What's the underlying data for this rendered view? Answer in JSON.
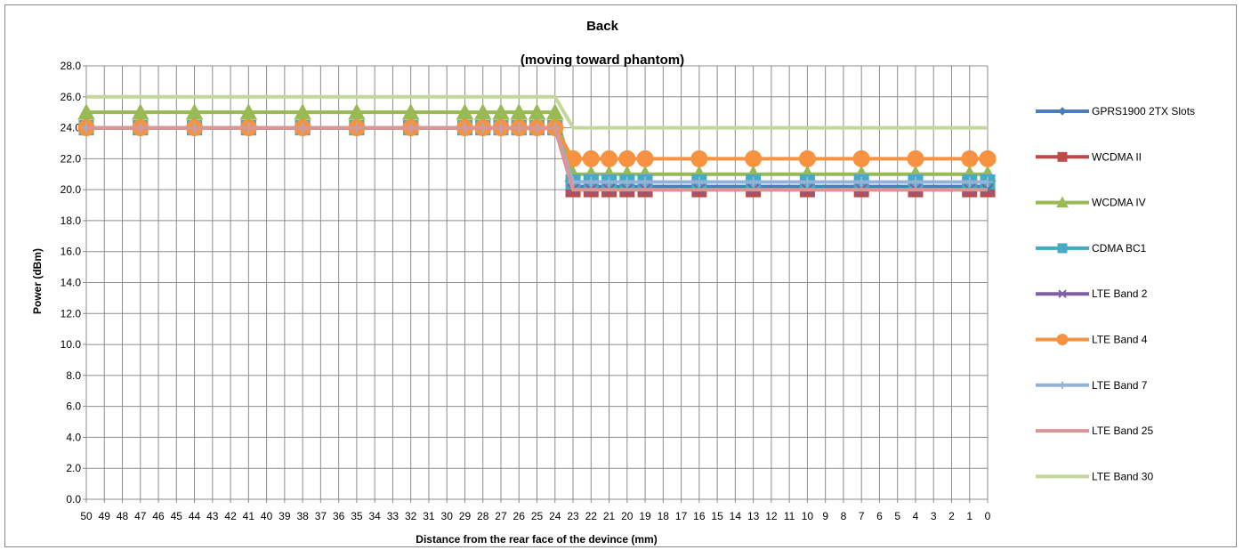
{
  "chart_data": {
    "type": "line",
    "title": "Back",
    "subtitle": "(moving toward phantom)",
    "xlabel": "Distance from the rear face of the devince (mm)",
    "ylabel": "Power (dBm)",
    "ylim": [
      0,
      28
    ],
    "ytick_step": 2,
    "ytick_labels": [
      "0.0",
      "2.0",
      "4.0",
      "6.0",
      "8.0",
      "10.0",
      "12.0",
      "14.0",
      "16.0",
      "18.0",
      "20.0",
      "22.0",
      "24.0",
      "26.0",
      "28.0"
    ],
    "grid": true,
    "legend_position": "right",
    "x_categories": [
      "50",
      "49",
      "48",
      "47",
      "46",
      "45",
      "44",
      "43",
      "42",
      "41",
      "40",
      "39",
      "38",
      "37",
      "36",
      "35",
      "34",
      "33",
      "32",
      "31",
      "30",
      "29",
      "28",
      "27",
      "26",
      "25",
      "24",
      "23",
      "22",
      "21",
      "20",
      "19",
      "18",
      "17",
      "16",
      "15",
      "14",
      "13",
      "12",
      "11",
      "10",
      "9",
      "8",
      "7",
      "6",
      "5",
      "4",
      "3",
      "2",
      "1",
      "0"
    ],
    "marker_x": [
      "50",
      "47",
      "44",
      "41",
      "38",
      "35",
      "32",
      "29",
      "28",
      "27",
      "26",
      "25",
      "24",
      "23",
      "22",
      "21",
      "20",
      "19",
      "16",
      "13",
      "10",
      "7",
      "4",
      "1",
      "0"
    ],
    "series": [
      {
        "name": "GPRS1900 2TX Slots",
        "color": "#4a7ebb",
        "marker": "diamond",
        "values": [
          24,
          24,
          24,
          24,
          24,
          24,
          24,
          24,
          24,
          24,
          24,
          24,
          24,
          20.2,
          20.2,
          20.2,
          20.2,
          20.2,
          20.2,
          20.2,
          20.2,
          20.2,
          20.2,
          20.2,
          20.2
        ]
      },
      {
        "name": "WCDMA II",
        "color": "#be4b48",
        "marker": "square",
        "values": [
          24,
          24,
          24,
          24,
          24,
          24,
          24,
          24,
          24,
          24,
          24,
          24,
          24,
          20,
          20,
          20,
          20,
          20,
          20,
          20,
          20,
          20,
          20,
          20,
          20
        ]
      },
      {
        "name": "WCDMA IV",
        "color": "#98b954",
        "marker": "triangle",
        "values": [
          25,
          25,
          25,
          25,
          25,
          25,
          25,
          25,
          25,
          25,
          25,
          25,
          25,
          21,
          21,
          21,
          21,
          21,
          21,
          21,
          21,
          21,
          21,
          21,
          21
        ]
      },
      {
        "name": "CDMA BC1",
        "color": "#46aac5",
        "marker": "square",
        "values": [
          24,
          24,
          24,
          24,
          24,
          24,
          24,
          24,
          24,
          24,
          24,
          24,
          24,
          20.5,
          20.5,
          20.5,
          20.5,
          20.5,
          20.5,
          20.5,
          20.5,
          20.5,
          20.5,
          20.5,
          20.5
        ]
      },
      {
        "name": "LTE Band 2",
        "color": "#7d60a0",
        "marker": "x",
        "values": [
          24,
          24,
          24,
          24,
          24,
          24,
          24,
          24,
          24,
          24,
          24,
          24,
          24,
          20,
          20,
          20,
          20,
          20,
          20,
          20,
          20,
          20,
          20,
          20,
          20
        ]
      },
      {
        "name": "LTE Band 4",
        "color": "#f69240",
        "marker": "circle",
        "values": [
          24,
          24,
          24,
          24,
          24,
          24,
          24,
          24,
          24,
          24,
          24,
          24,
          24,
          22,
          22,
          22,
          22,
          22,
          22,
          22,
          22,
          22,
          22,
          22,
          22
        ]
      },
      {
        "name": "LTE Band 7",
        "color": "#95b3d7",
        "marker": "plus",
        "values": [
          24,
          24,
          24,
          24,
          24,
          24,
          24,
          24,
          24,
          24,
          24,
          24,
          24,
          20.5,
          20.5,
          20.5,
          20.5,
          20.5,
          20.5,
          20.5,
          20.5,
          20.5,
          20.5,
          20.5,
          20.5
        ]
      },
      {
        "name": "LTE Band 25",
        "color": "#d99694",
        "marker": "none",
        "values": [
          24,
          24,
          24,
          24,
          24,
          24,
          24,
          24,
          24,
          24,
          24,
          24,
          24,
          20,
          20,
          20,
          20,
          20,
          20,
          20,
          20,
          20,
          20,
          20,
          20
        ]
      },
      {
        "name": "LTE Band 30",
        "color": "#c3d69b",
        "marker": "none",
        "values": [
          26,
          26,
          26,
          26,
          26,
          26,
          26,
          26,
          26,
          26,
          26,
          26,
          26,
          24,
          24,
          24,
          24,
          24,
          24,
          24,
          24,
          24,
          24,
          24,
          24
        ]
      }
    ]
  }
}
